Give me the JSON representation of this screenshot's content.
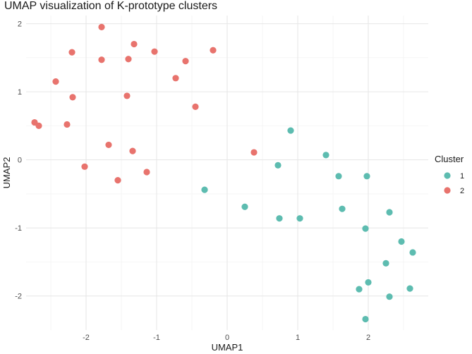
{
  "chart_data": {
    "type": "scatter",
    "title": "UMAP visualization of K-prototype clusters",
    "xlabel": "UMAP1",
    "ylabel": "UMAP2",
    "xlim": [
      -2.85,
      2.85
    ],
    "ylim": [
      -2.5,
      2.12
    ],
    "x_ticks": [
      -2,
      -1,
      0,
      1,
      2
    ],
    "y_ticks": [
      -2,
      -1,
      0,
      1,
      2
    ],
    "grid": true,
    "legend": {
      "title": "Cluster",
      "position": "right"
    },
    "series": [
      {
        "name": "1",
        "color": "#5dbcb0",
        "points": [
          {
            "x": 0.9,
            "y": 0.43
          },
          {
            "x": 1.4,
            "y": 0.07
          },
          {
            "x": 0.72,
            "y": -0.08
          },
          {
            "x": 1.58,
            "y": -0.24
          },
          {
            "x": 1.98,
            "y": -0.24
          },
          {
            "x": -0.32,
            "y": -0.44
          },
          {
            "x": 0.25,
            "y": -0.69
          },
          {
            "x": 1.63,
            "y": -0.72
          },
          {
            "x": 2.3,
            "y": -0.77
          },
          {
            "x": 0.74,
            "y": -0.86
          },
          {
            "x": 1.03,
            "y": -0.86
          },
          {
            "x": 1.96,
            "y": -1.01
          },
          {
            "x": 2.47,
            "y": -1.2
          },
          {
            "x": 2.63,
            "y": -1.36
          },
          {
            "x": 2.25,
            "y": -1.52
          },
          {
            "x": 2.0,
            "y": -1.8
          },
          {
            "x": 1.87,
            "y": -1.9
          },
          {
            "x": 2.59,
            "y": -1.89
          },
          {
            "x": 2.3,
            "y": -2.01
          },
          {
            "x": 1.96,
            "y": -2.34
          }
        ]
      },
      {
        "name": "2",
        "color": "#e8736d",
        "points": [
          {
            "x": -1.78,
            "y": 1.95
          },
          {
            "x": -1.32,
            "y": 1.7
          },
          {
            "x": -0.2,
            "y": 1.61
          },
          {
            "x": -2.2,
            "y": 1.58
          },
          {
            "x": -1.03,
            "y": 1.59
          },
          {
            "x": -1.78,
            "y": 1.47
          },
          {
            "x": -1.4,
            "y": 1.48
          },
          {
            "x": -0.59,
            "y": 1.45
          },
          {
            "x": -0.73,
            "y": 1.2
          },
          {
            "x": -2.43,
            "y": 1.15
          },
          {
            "x": -2.19,
            "y": 0.92
          },
          {
            "x": -1.42,
            "y": 0.94
          },
          {
            "x": -0.45,
            "y": 0.78
          },
          {
            "x": -2.73,
            "y": 0.55
          },
          {
            "x": -2.67,
            "y": 0.5
          },
          {
            "x": -2.27,
            "y": 0.52
          },
          {
            "x": -1.68,
            "y": 0.22
          },
          {
            "x": -1.34,
            "y": 0.13
          },
          {
            "x": 0.38,
            "y": 0.11
          },
          {
            "x": -2.02,
            "y": -0.1
          },
          {
            "x": -1.14,
            "y": -0.18
          },
          {
            "x": -1.55,
            "y": -0.3
          }
        ]
      }
    ]
  }
}
